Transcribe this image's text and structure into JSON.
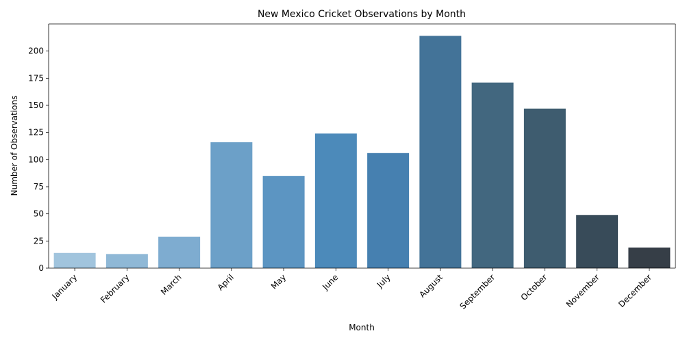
{
  "chart_data": {
    "type": "bar",
    "title": "New Mexico Cricket Observations by Month",
    "xlabel": "Month",
    "ylabel": "Number of Observations",
    "categories": [
      "January",
      "February",
      "March",
      "April",
      "May",
      "June",
      "July",
      "August",
      "September",
      "October",
      "November",
      "December"
    ],
    "values": [
      14,
      13,
      29,
      116,
      85,
      124,
      106,
      214,
      171,
      147,
      49,
      19
    ],
    "colors": [
      "#a1c4dd",
      "#8fb8d6",
      "#7eacd0",
      "#6ca0c8",
      "#5c95c2",
      "#4c8aba",
      "#4680b0",
      "#437398",
      "#42677f",
      "#3e5c6f",
      "#384b59",
      "#363e47"
    ],
    "ylim": [
      0,
      225
    ],
    "yticks": [
      0,
      25,
      50,
      75,
      100,
      125,
      150,
      175,
      200
    ],
    "grid": false,
    "legend": "none"
  }
}
